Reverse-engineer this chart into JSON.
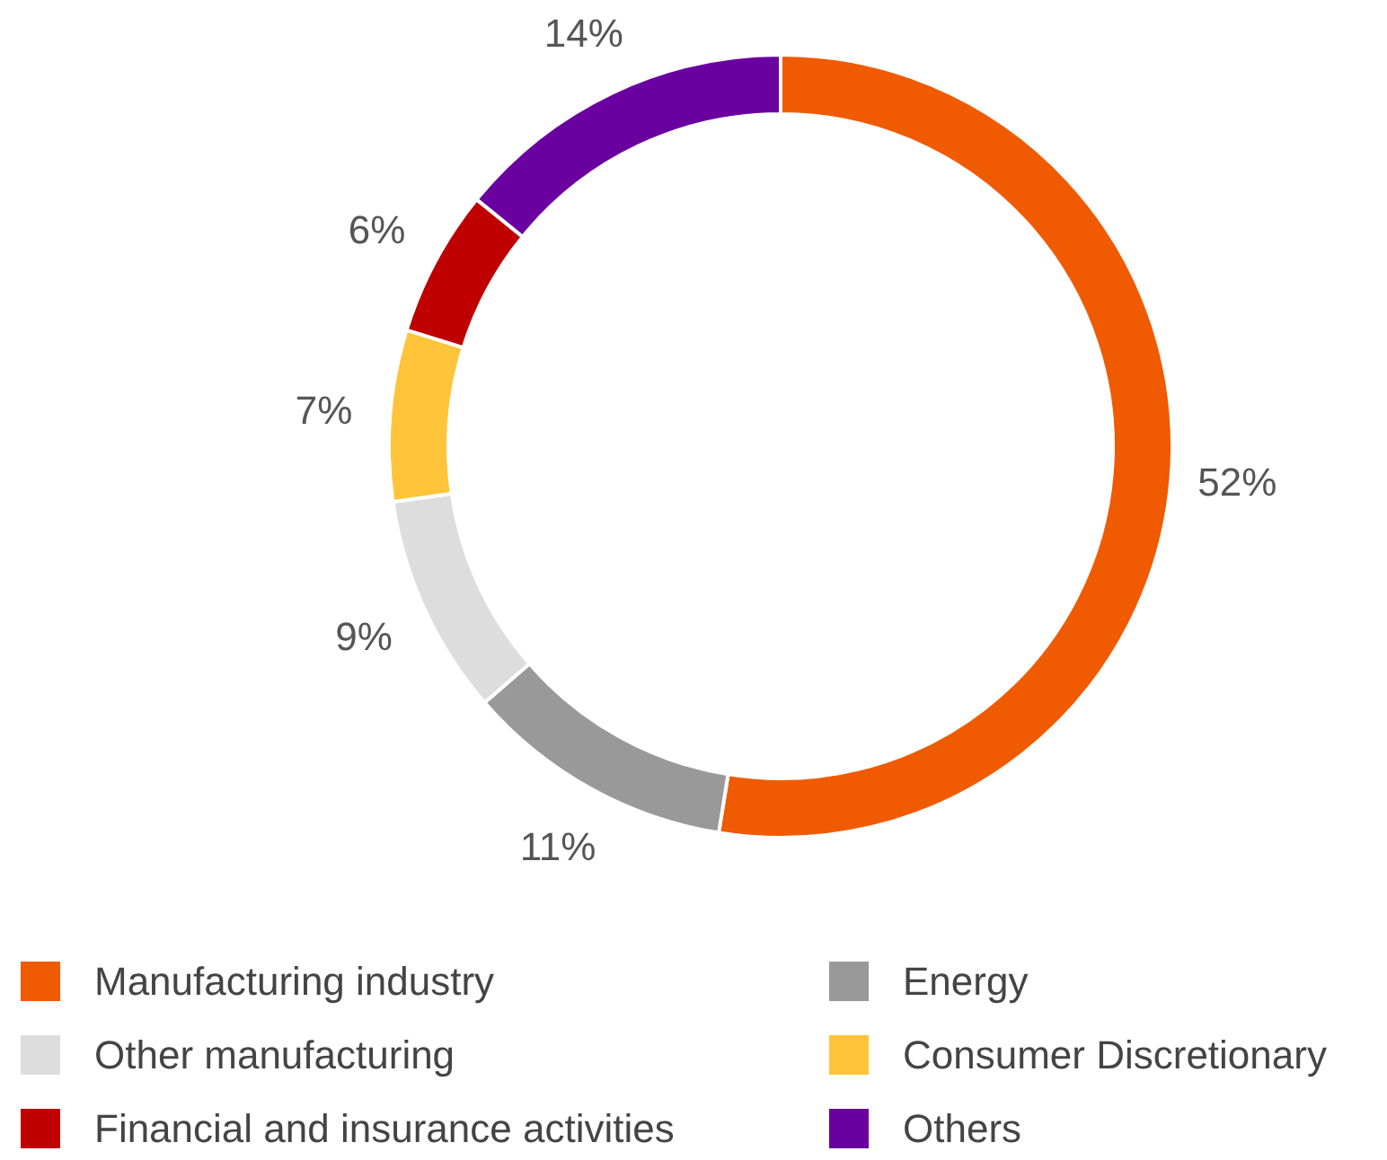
{
  "chart_data": {
    "type": "donut",
    "categories": [
      "Manufacturing industry",
      "Energy",
      "Other manufacturing",
      "Consumer Discretionary",
      "Financial and insurance activities",
      "Others"
    ],
    "values": [
      52,
      11,
      9,
      7,
      6,
      14
    ],
    "colors": [
      "#f05a00",
      "#999999",
      "#dddddd",
      "#ffc43a",
      "#c00000",
      "#6a00a0"
    ],
    "value_labels": [
      "52%",
      "11%",
      "9%",
      "7%",
      "6%",
      "14%"
    ],
    "legend": "bottom"
  }
}
